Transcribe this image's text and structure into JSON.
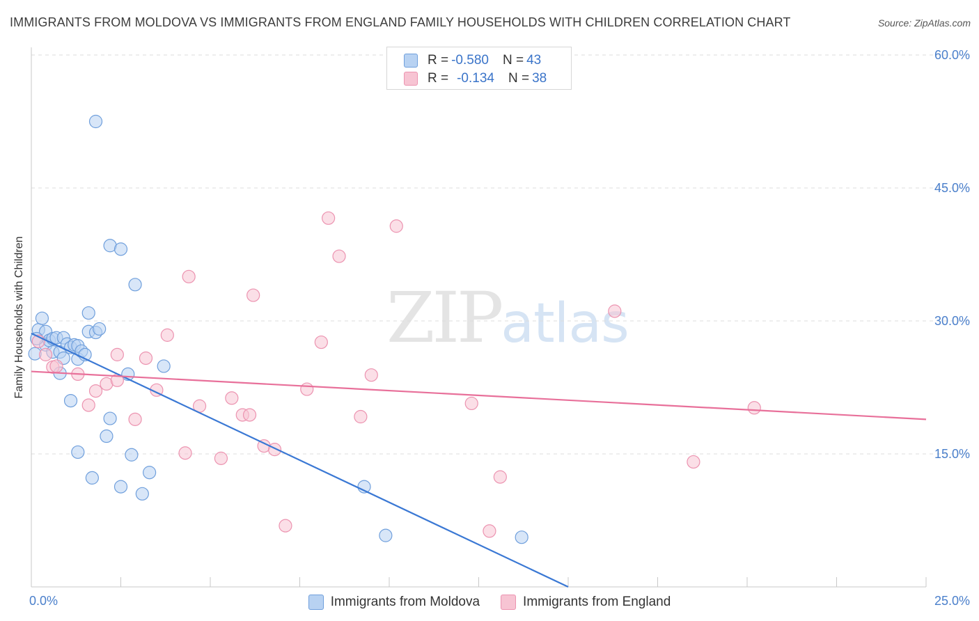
{
  "header": {
    "title": "IMMIGRANTS FROM MOLDOVA VS IMMIGRANTS FROM ENGLAND FAMILY HOUSEHOLDS WITH CHILDREN CORRELATION CHART",
    "source": "Source: ZipAtlas.com"
  },
  "watermark": {
    "zip": "ZIP",
    "atlas": "atlas"
  },
  "legend": {
    "rows": [
      {
        "r_label": "R = ",
        "r_value": "-0.580",
        "n_label": "N = ",
        "n_value": "43"
      },
      {
        "r_label": "R = ",
        "r_value": "-0.134",
        "n_label": "N = ",
        "n_value": "38"
      }
    ]
  },
  "colors": {
    "moldova_fill": "#b8d2f2",
    "moldova_stroke": "#6f9fdc",
    "moldova_line": "#3a78d4",
    "england_fill": "#f7c4d3",
    "england_stroke": "#ec93b0",
    "england_line": "#e8709a",
    "grid": "#dcdcdc",
    "axis_text": "#4a7fcb"
  },
  "chart_data": {
    "type": "scatter",
    "title": "IMMIGRANTS FROM MOLDOVA VS IMMIGRANTS FROM ENGLAND FAMILY HOUSEHOLDS WITH CHILDREN CORRELATION CHART",
    "xlabel": "",
    "ylabel": "Family Households with Children",
    "xlim": [
      0,
      25
    ],
    "ylim": [
      0,
      60
    ],
    "x_tick_labels": [
      "0.0%",
      "25.0%"
    ],
    "y_ticks": [
      15,
      30,
      45,
      60
    ],
    "y_tick_labels": [
      "15.0%",
      "30.0%",
      "45.0%",
      "60.0%"
    ],
    "grid": true,
    "series": [
      {
        "name": "Immigrants from Moldova",
        "r": -0.58,
        "n": 43,
        "trend": {
          "x0": 0.0,
          "y0": 28.6,
          "x1": 15.0,
          "y1": 0.0
        },
        "points": [
          [
            0.1,
            26.3
          ],
          [
            0.2,
            29.0
          ],
          [
            0.3,
            30.3
          ],
          [
            0.4,
            27.3
          ],
          [
            0.4,
            28.8
          ],
          [
            0.5,
            27.8
          ],
          [
            0.6,
            28.0
          ],
          [
            0.6,
            26.5
          ],
          [
            0.7,
            28.1
          ],
          [
            0.8,
            26.5
          ],
          [
            0.8,
            24.1
          ],
          [
            0.9,
            28.1
          ],
          [
            0.9,
            25.8
          ],
          [
            1.0,
            27.4
          ],
          [
            1.1,
            27.0
          ],
          [
            1.2,
            27.3
          ],
          [
            1.3,
            27.2
          ],
          [
            1.3,
            25.7
          ],
          [
            1.4,
            26.6
          ],
          [
            1.5,
            26.2
          ],
          [
            1.1,
            21.0
          ],
          [
            1.3,
            15.2
          ],
          [
            1.6,
            30.9
          ],
          [
            1.6,
            28.8
          ],
          [
            1.8,
            28.7
          ],
          [
            1.9,
            29.1
          ],
          [
            1.7,
            12.3
          ],
          [
            2.1,
            17.0
          ],
          [
            2.2,
            19.0
          ],
          [
            2.5,
            11.3
          ],
          [
            2.8,
            14.9
          ],
          [
            3.1,
            10.5
          ],
          [
            3.3,
            12.9
          ],
          [
            2.7,
            24.0
          ],
          [
            3.7,
            24.9
          ],
          [
            1.8,
            52.5
          ],
          [
            2.2,
            38.5
          ],
          [
            2.5,
            38.1
          ],
          [
            2.9,
            34.1
          ],
          [
            9.3,
            11.3
          ],
          [
            9.9,
            5.8
          ],
          [
            13.7,
            5.6
          ],
          [
            0.15,
            28.0
          ]
        ]
      },
      {
        "name": "Immigrants from England",
        "r": -0.134,
        "n": 38,
        "trend": {
          "x0": 0.0,
          "y0": 24.3,
          "x1": 25.0,
          "y1": 18.9
        },
        "points": [
          [
            0.2,
            27.7
          ],
          [
            0.4,
            26.2
          ],
          [
            0.6,
            24.8
          ],
          [
            0.7,
            24.9
          ],
          [
            1.3,
            24.0
          ],
          [
            1.6,
            20.5
          ],
          [
            1.8,
            22.1
          ],
          [
            2.1,
            22.9
          ],
          [
            2.4,
            23.3
          ],
          [
            2.4,
            26.2
          ],
          [
            2.9,
            18.9
          ],
          [
            3.2,
            25.8
          ],
          [
            3.5,
            22.2
          ],
          [
            3.8,
            28.4
          ],
          [
            4.3,
            15.1
          ],
          [
            4.4,
            35.0
          ],
          [
            4.7,
            20.4
          ],
          [
            5.3,
            14.5
          ],
          [
            5.6,
            21.3
          ],
          [
            5.9,
            19.4
          ],
          [
            6.1,
            19.4
          ],
          [
            6.2,
            32.9
          ],
          [
            6.5,
            15.9
          ],
          [
            6.8,
            15.5
          ],
          [
            7.1,
            6.9
          ],
          [
            7.7,
            22.3
          ],
          [
            8.1,
            27.6
          ],
          [
            8.3,
            41.6
          ],
          [
            8.6,
            37.3
          ],
          [
            9.2,
            19.2
          ],
          [
            9.5,
            23.9
          ],
          [
            10.2,
            40.7
          ],
          [
            12.3,
            20.7
          ],
          [
            12.8,
            6.3
          ],
          [
            13.1,
            12.4
          ],
          [
            16.3,
            31.1
          ],
          [
            18.5,
            14.1
          ],
          [
            20.2,
            20.2
          ]
        ]
      }
    ]
  },
  "bottom_legend": [
    "Immigrants from Moldova",
    "Immigrants from England"
  ]
}
